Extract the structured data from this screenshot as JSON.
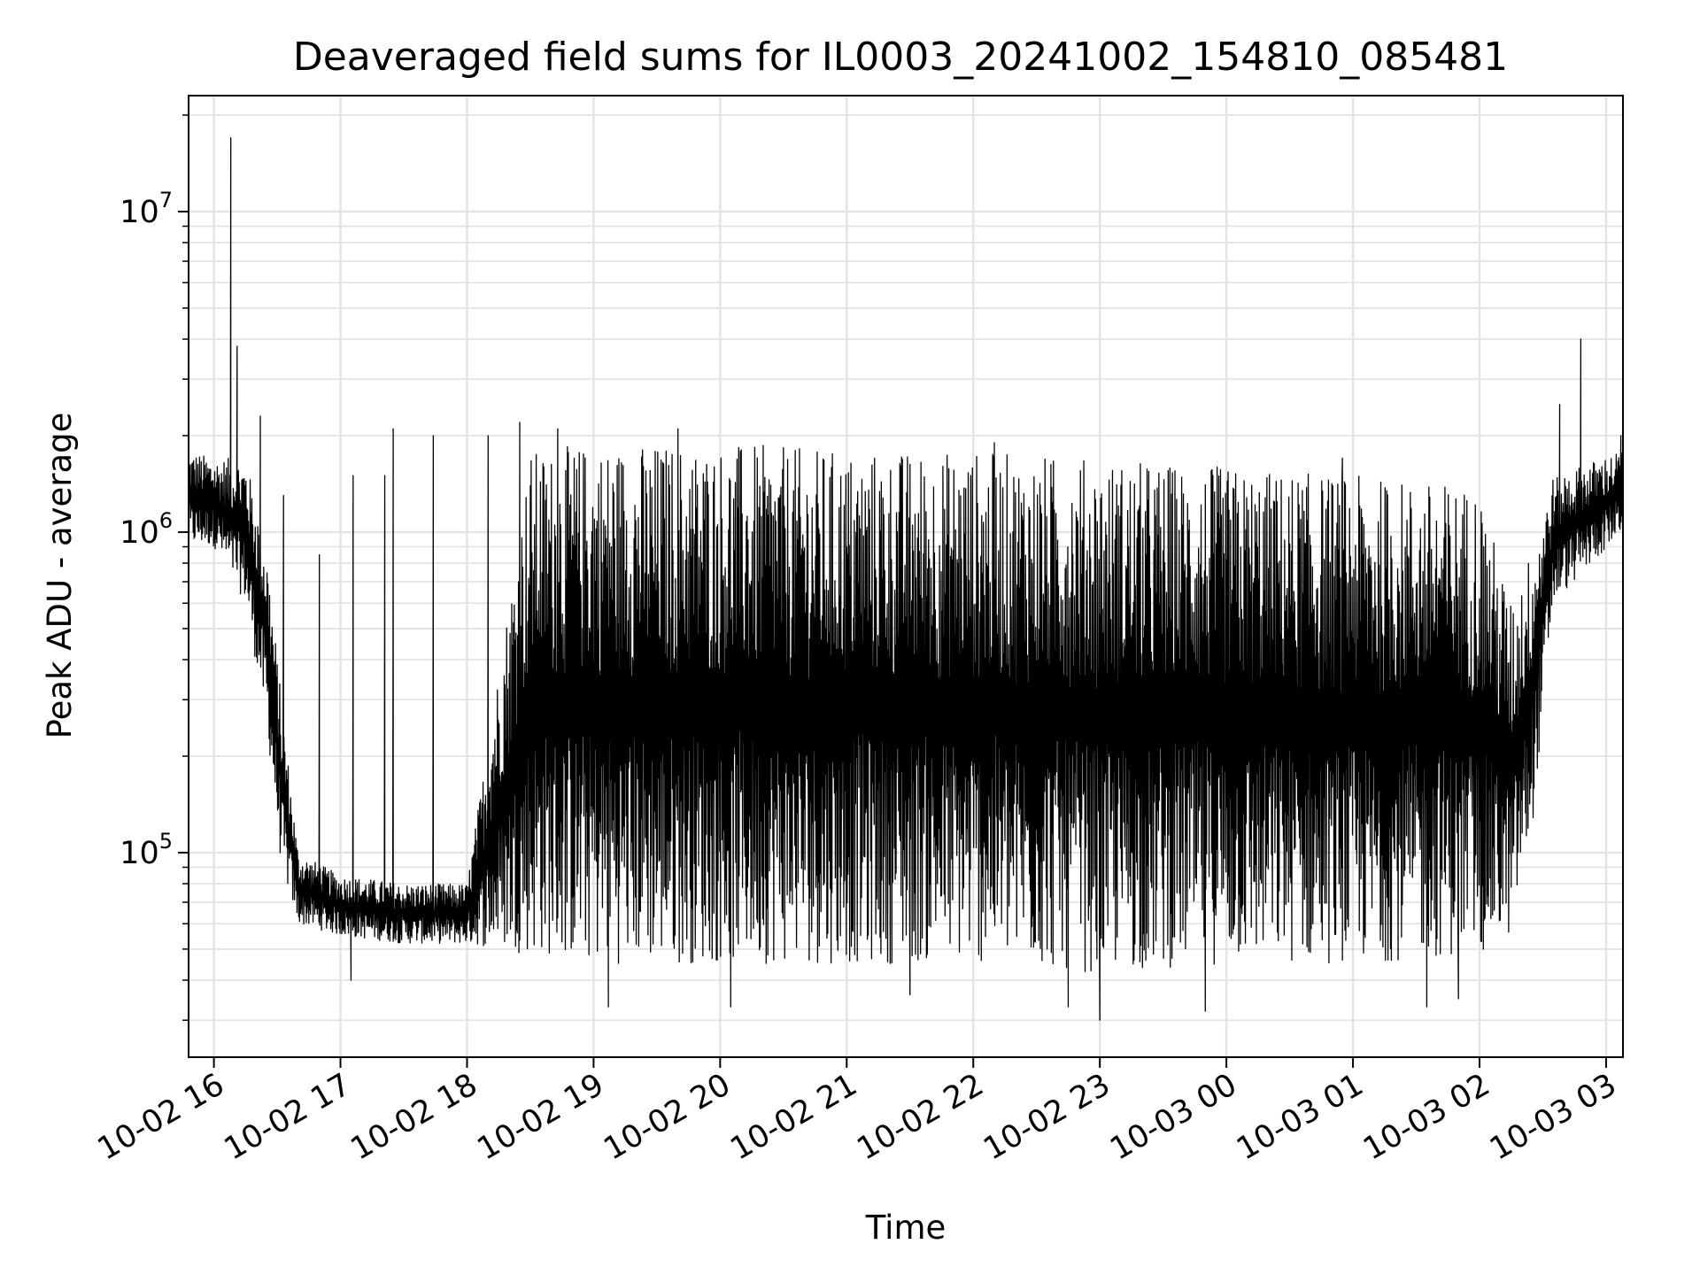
{
  "chart_data": {
    "type": "line",
    "title": "Deaveraged field sums for IL0003_20241002_154810_085481",
    "xlabel": "Time",
    "ylabel": "Peak ADU - average",
    "yscale": "log",
    "ylim": [
      23000,
      23000000
    ],
    "xlim": [
      "2024-10-02 15:48",
      "2024-10-03 03:08"
    ],
    "grid": true,
    "line_color": "#000000",
    "x_ticks": [
      "10-02 16",
      "10-02 17",
      "10-02 18",
      "10-02 19",
      "10-02 20",
      "10-02 21",
      "10-02 22",
      "10-02 23",
      "10-03 00",
      "10-03 01",
      "10-03 02",
      "10-03 03"
    ],
    "x_tick_times": [
      "2024-10-02 16:00",
      "2024-10-02 17:00",
      "2024-10-02 18:00",
      "2024-10-02 19:00",
      "2024-10-02 20:00",
      "2024-10-02 21:00",
      "2024-10-02 22:00",
      "2024-10-02 23:00",
      "2024-10-03 00:00",
      "2024-10-03 01:00",
      "2024-10-03 02:00",
      "2024-10-03 03:00"
    ],
    "y_ticks": [
      {
        "value": 100000,
        "base": "10",
        "exp": "5"
      },
      {
        "value": 1000000,
        "base": "10",
        "exp": "6"
      },
      {
        "value": 10000000,
        "base": "10",
        "exp": "7"
      }
    ],
    "series": [
      {
        "name": "",
        "envelope": [
          {
            "time": "2024-10-02 15:48",
            "low": 900000,
            "high": 1800000
          },
          {
            "time": "2024-10-02 16:00",
            "low": 900000,
            "high": 1700000
          },
          {
            "time": "2024-10-02 16:15",
            "low": 600000,
            "high": 1700000
          },
          {
            "time": "2024-10-02 16:25",
            "low": 250000,
            "high": 900000
          },
          {
            "time": "2024-10-02 16:32",
            "low": 90000,
            "high": 300000
          },
          {
            "time": "2024-10-02 16:40",
            "low": 60000,
            "high": 100000
          },
          {
            "time": "2024-10-02 17:00",
            "low": 55000,
            "high": 85000
          },
          {
            "time": "2024-10-02 17:30",
            "low": 52000,
            "high": 80000
          },
          {
            "time": "2024-10-02 18:00",
            "low": 52000,
            "high": 80000
          },
          {
            "time": "2024-10-02 18:30",
            "low": 48000,
            "high": 1800000
          },
          {
            "time": "2024-10-02 19:00",
            "low": 45000,
            "high": 1900000
          },
          {
            "time": "2024-10-02 20:00",
            "low": 45000,
            "high": 1900000
          },
          {
            "time": "2024-10-02 21:00",
            "low": 45000,
            "high": 1800000
          },
          {
            "time": "2024-10-02 22:00",
            "low": 45000,
            "high": 1800000
          },
          {
            "time": "2024-10-02 23:00",
            "low": 42000,
            "high": 1700000
          },
          {
            "time": "2024-10-03 00:00",
            "low": 45000,
            "high": 1600000
          },
          {
            "time": "2024-10-03 01:00",
            "low": 45000,
            "high": 1500000
          },
          {
            "time": "2024-10-03 02:00",
            "low": 48000,
            "high": 1400000
          },
          {
            "time": "2024-10-03 02:15",
            "low": 55000,
            "high": 600000
          },
          {
            "time": "2024-10-03 02:25",
            "low": 120000,
            "high": 900000
          },
          {
            "time": "2024-10-03 02:35",
            "low": 600000,
            "high": 1500000
          },
          {
            "time": "2024-10-03 03:08",
            "low": 1000000,
            "high": 1800000
          }
        ],
        "peaks": [
          {
            "time": "2024-10-02 16:08",
            "value": 17000000
          },
          {
            "time": "2024-10-02 16:11",
            "value": 3800000
          },
          {
            "time": "2024-10-02 16:22",
            "value": 2300000
          },
          {
            "time": "2024-10-02 16:33",
            "value": 1300000
          },
          {
            "time": "2024-10-02 16:50",
            "value": 850000
          },
          {
            "time": "2024-10-02 17:06",
            "value": 1500000
          },
          {
            "time": "2024-10-02 17:21",
            "value": 1500000
          },
          {
            "time": "2024-10-02 17:25",
            "value": 2100000
          },
          {
            "time": "2024-10-02 17:44",
            "value": 2000000
          },
          {
            "time": "2024-10-02 18:10",
            "value": 2000000
          },
          {
            "time": "2024-10-02 18:25",
            "value": 2200000
          },
          {
            "time": "2024-10-02 18:43",
            "value": 2100000
          },
          {
            "time": "2024-10-02 19:40",
            "value": 2100000
          },
          {
            "time": "2024-10-02 22:10",
            "value": 1900000
          },
          {
            "time": "2024-10-03 00:55",
            "value": 1700000
          },
          {
            "time": "2024-10-03 02:38",
            "value": 2500000
          },
          {
            "time": "2024-10-03 02:48",
            "value": 4000000
          },
          {
            "time": "2024-10-03 03:07",
            "value": 2000000
          }
        ],
        "dips": [
          {
            "time": "2024-10-02 17:05",
            "value": 40000
          },
          {
            "time": "2024-10-02 19:07",
            "value": 33000
          },
          {
            "time": "2024-10-02 20:05",
            "value": 33000
          },
          {
            "time": "2024-10-02 21:30",
            "value": 36000
          },
          {
            "time": "2024-10-02 22:45",
            "value": 33000
          },
          {
            "time": "2024-10-02 23:00",
            "value": 30000
          },
          {
            "time": "2024-10-02 23:50",
            "value": 32000
          },
          {
            "time": "2024-10-03 01:35",
            "value": 33000
          },
          {
            "time": "2024-10-03 01:50",
            "value": 35000
          }
        ]
      }
    ]
  }
}
